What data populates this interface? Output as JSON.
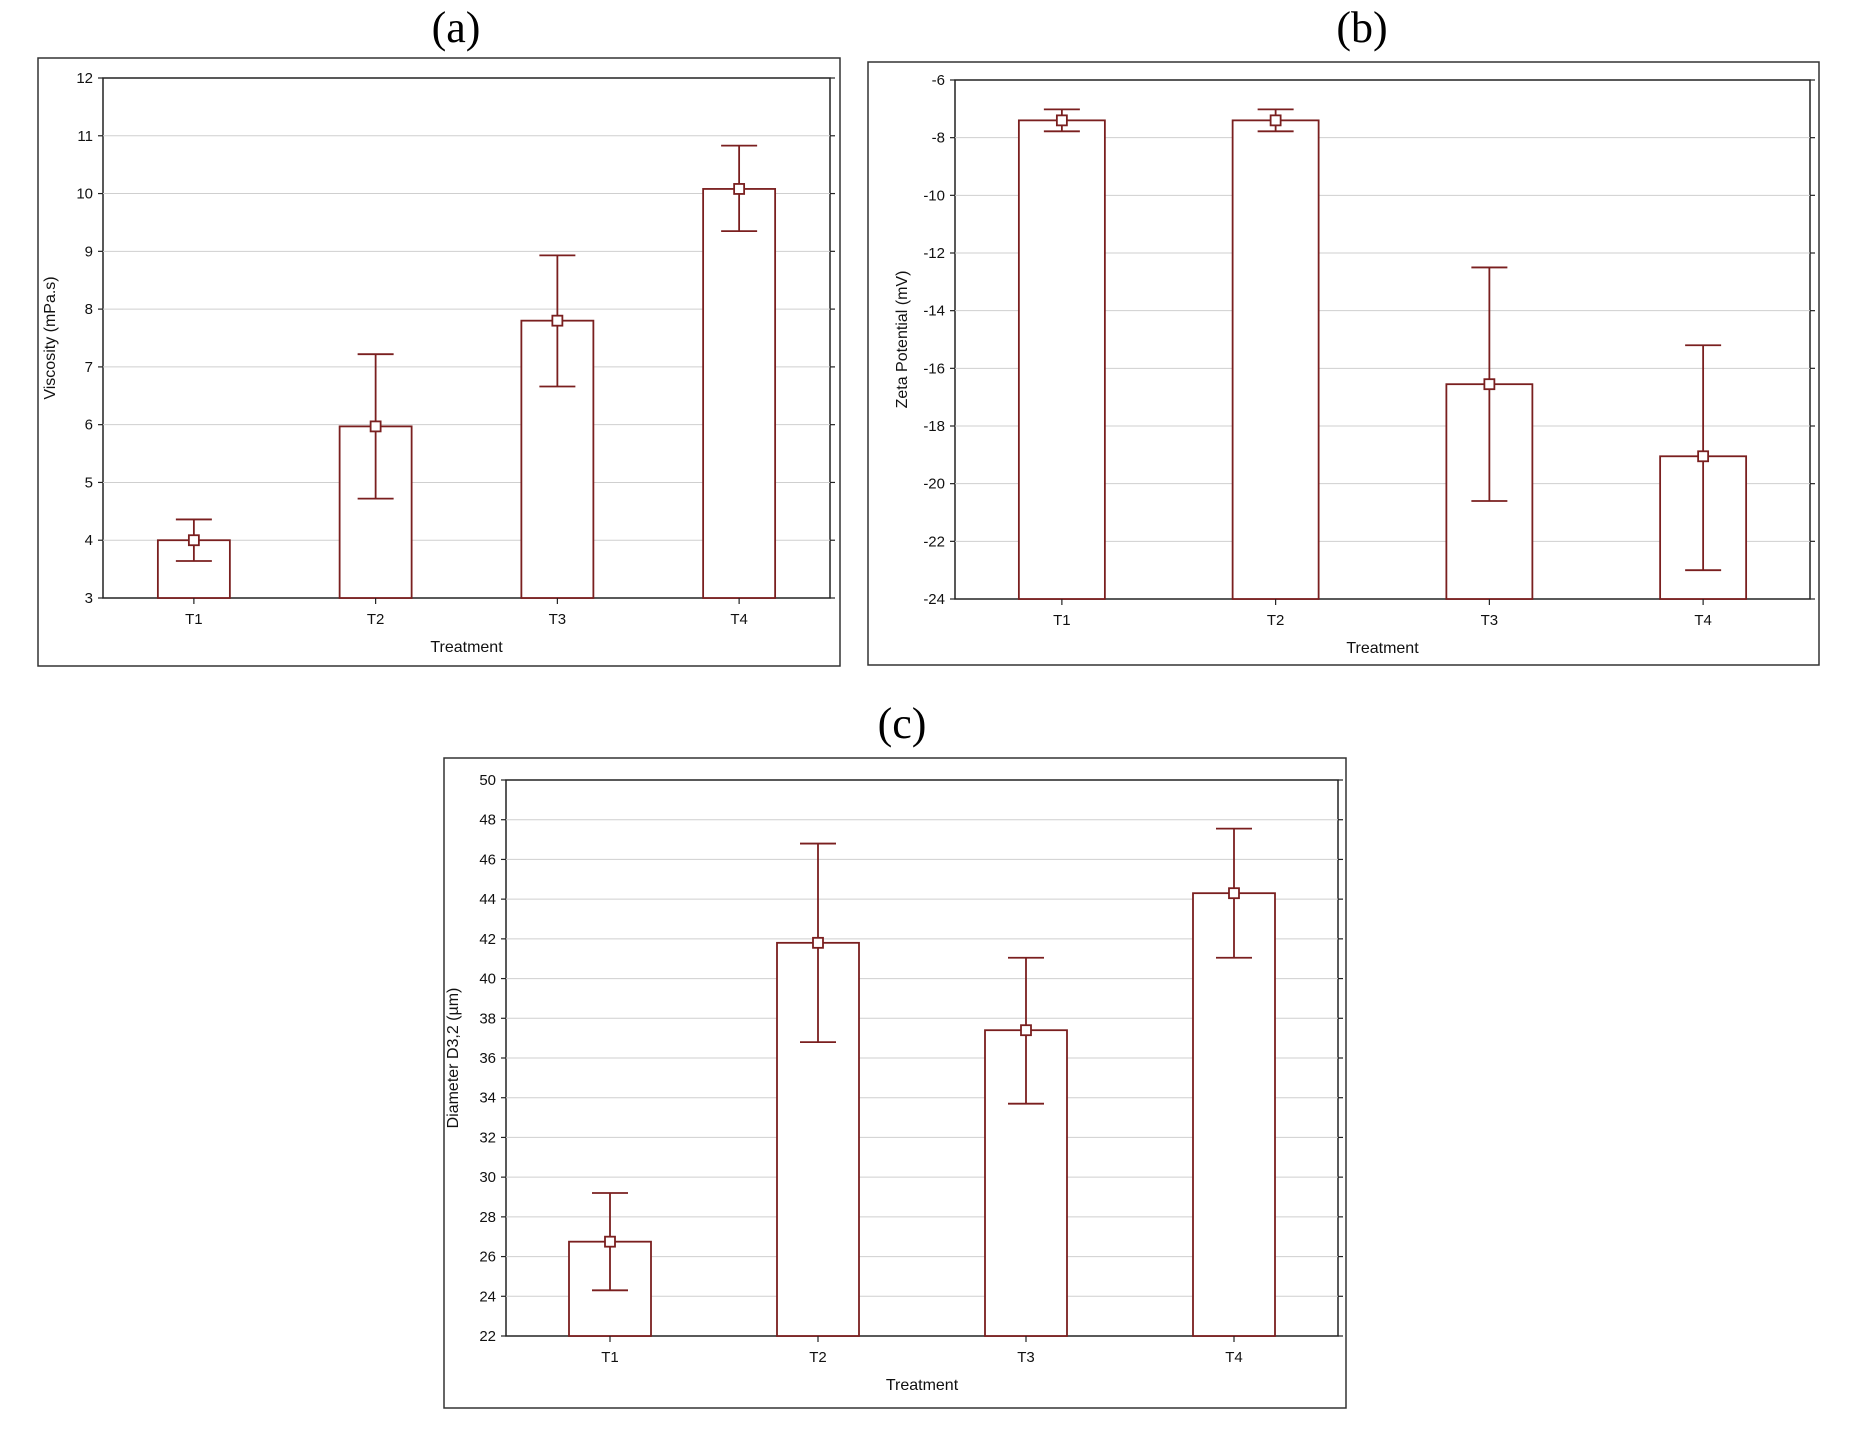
{
  "panels": [
    {
      "label": "(a)"
    },
    {
      "label": "(b)"
    },
    {
      "label": "(c)"
    }
  ],
  "colors": {
    "bar_stroke": "#7a1f1f",
    "grid": "#cfcfcf"
  },
  "chart_data": [
    {
      "type": "bar",
      "panel": "(a)",
      "categories": [
        "T1",
        "T2",
        "T3",
        "T4"
      ],
      "values": [
        4.0,
        5.97,
        7.8,
        10.08
      ],
      "error_low": [
        3.64,
        4.72,
        6.66,
        9.35
      ],
      "error_high": [
        4.36,
        7.22,
        8.93,
        10.83
      ],
      "xlabel": "Treatment",
      "ylabel": "Viscosity (mPa.s)",
      "ylim": [
        3,
        12
      ],
      "yticks": [
        3,
        4,
        5,
        6,
        7,
        8,
        9,
        10,
        11,
        12
      ],
      "grid": true,
      "legend": "none"
    },
    {
      "type": "bar",
      "panel": "(b)",
      "categories": [
        "T1",
        "T2",
        "T3",
        "T4"
      ],
      "values": [
        -7.4,
        -7.4,
        -16.55,
        -19.05
      ],
      "error_low": [
        -7.78,
        -7.78,
        -20.6,
        -23.0
      ],
      "error_high": [
        -7.02,
        -7.02,
        -12.5,
        -15.2
      ],
      "xlabel": "Treatment",
      "ylabel": "Zeta Potential  (mV)",
      "ylim": [
        -24,
        -6
      ],
      "yticks": [
        -24,
        -22,
        -20,
        -18,
        -16,
        -14,
        -12,
        -10,
        -8,
        -6
      ],
      "grid": true,
      "legend": "none"
    },
    {
      "type": "bar",
      "panel": "(c)",
      "categories": [
        "T1",
        "T2",
        "T3",
        "T4"
      ],
      "values": [
        26.75,
        41.8,
        37.4,
        44.3
      ],
      "error_low": [
        24.3,
        36.8,
        33.7,
        41.05
      ],
      "error_high": [
        29.2,
        46.8,
        41.05,
        47.55
      ],
      "xlabel": "Treatment",
      "ylabel": "Diameter D3,2 (µm)",
      "ylim": [
        22,
        50
      ],
      "yticks": [
        22,
        24,
        26,
        28,
        30,
        32,
        34,
        36,
        38,
        40,
        42,
        44,
        46,
        48,
        50
      ],
      "grid": true,
      "legend": "none"
    }
  ]
}
